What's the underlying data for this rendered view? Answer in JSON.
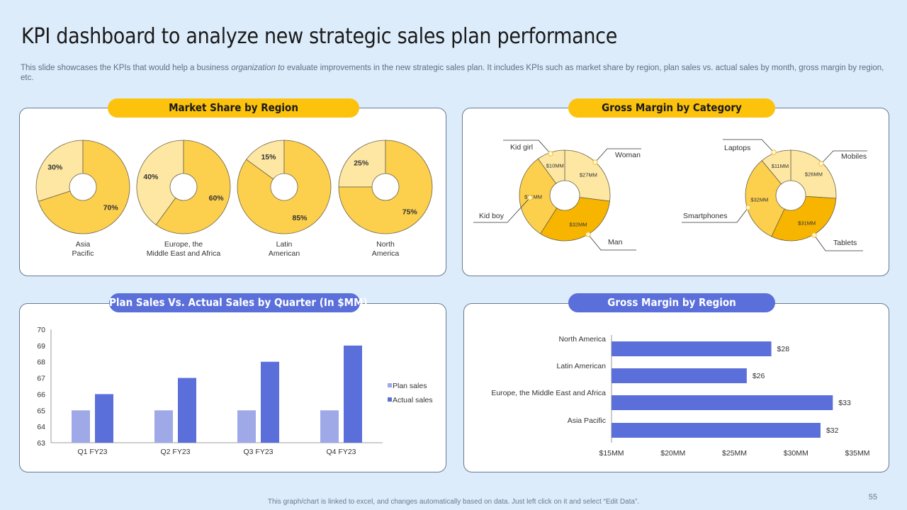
{
  "slide": {
    "title": "KPI dashboard to analyze new strategic sales plan performance",
    "subtitle_part1": "This slide showcases the KPIs that would help a business ",
    "subtitle_italic": "organization to",
    "subtitle_part2": " evaluate improvements in the new strategic sales plan. It includes KPIs such as market share by region, plan sales vs. actual sales by month, gross margin by region, etc.",
    "footer": "This graph/chart is linked to excel, and changes automatically based on data. Just left click on it and select “Edit Data”.",
    "page_number": "55"
  },
  "colors": {
    "yellow_dark": "#f7b500",
    "yellow_mid": "#fccf4d",
    "yellow_light": "#fde7a3",
    "blue_dark": "#5a6fda",
    "blue_light": "#9fa9e8",
    "axis": "#7f7f7f"
  },
  "chart_data": [
    {
      "id": "market_share",
      "type": "pie",
      "title": "Market Share by Region",
      "pies": [
        {
          "label_lines": [
            "Asia",
            "Pacific"
          ],
          "slices": [
            {
              "label": "30%",
              "value": 30,
              "shade": "light"
            },
            {
              "label": "70%",
              "value": 70,
              "shade": "mid"
            }
          ]
        },
        {
          "label_lines": [
            "Europe, the",
            "Middle East and Africa"
          ],
          "slices": [
            {
              "label": "40%",
              "value": 40,
              "shade": "light"
            },
            {
              "label": "60%",
              "value": 60,
              "shade": "mid"
            }
          ]
        },
        {
          "label_lines": [
            "Latin",
            "American"
          ],
          "slices": [
            {
              "label": "15%",
              "value": 15,
              "shade": "light"
            },
            {
              "label": "85%",
              "value": 85,
              "shade": "mid"
            }
          ]
        },
        {
          "label_lines": [
            "North",
            "America"
          ],
          "slices": [
            {
              "label": "25%",
              "value": 25,
              "shade": "light"
            },
            {
              "label": "75%",
              "value": 75,
              "shade": "mid"
            }
          ]
        }
      ]
    },
    {
      "id": "gross_margin_category",
      "type": "pie",
      "title": "Gross Margin by Category",
      "donuts": [
        {
          "slices": [
            {
              "name": "Woman",
              "value": 27,
              "label": "$27MM",
              "shade": "light",
              "callout": "Woman"
            },
            {
              "name": "Man",
              "value": 32,
              "label": "$32MM",
              "shade": "dark",
              "callout": "Man"
            },
            {
              "name": "Kid boy",
              "value": 31,
              "label": "$31MM",
              "shade": "mid",
              "callout": "Kid boy"
            },
            {
              "name": "Kid girl",
              "value": 10,
              "label": "$10MM",
              "shade": "light",
              "callout": "Kid girl"
            }
          ]
        },
        {
          "slices": [
            {
              "name": "Mobiles",
              "value": 26,
              "label": "$26MM",
              "shade": "light",
              "callout": "Mobiles"
            },
            {
              "name": "Tablets",
              "value": 31,
              "label": "$31MM",
              "shade": "dark",
              "callout": "Tablets"
            },
            {
              "name": "Smartphones",
              "value": 32,
              "label": "$32MM",
              "shade": "mid",
              "callout": "Smartphones"
            },
            {
              "name": "Laptops",
              "value": 11,
              "label": "$11MM",
              "shade": "light",
              "callout": "Laptops"
            }
          ]
        }
      ]
    },
    {
      "id": "plan_vs_actual",
      "type": "bar",
      "title": "Plan Sales Vs. Actual Sales by Quarter (In $MM)",
      "categories": [
        "Q1 FY23",
        "Q2 FY23",
        "Q3 FY23",
        "Q4 FY23"
      ],
      "series": [
        {
          "name": "Plan sales",
          "values": [
            65,
            65,
            65,
            65
          ]
        },
        {
          "name": "Actual sales",
          "values": [
            66,
            67,
            68,
            69
          ]
        }
      ],
      "ylim": [
        63,
        70
      ],
      "yticks": [
        "63",
        "64",
        "65",
        "66",
        "67",
        "68",
        "69",
        "70"
      ],
      "legend_position": "right"
    },
    {
      "id": "gross_margin_region",
      "type": "bar",
      "orientation": "horizontal",
      "title": "Gross Margin by Region",
      "categories": [
        "North America",
        "Latin American",
        "Europe, the Middle East and Africa",
        "Asia Pacific"
      ],
      "values": [
        28,
        26,
        33,
        32
      ],
      "value_labels": [
        "$28",
        "$26",
        "$33",
        "$32"
      ],
      "xlim": [
        15,
        35
      ],
      "xticks": [
        "$15MM",
        "$20MM",
        "$25MM",
        "$30MM",
        "$35MM"
      ]
    }
  ]
}
